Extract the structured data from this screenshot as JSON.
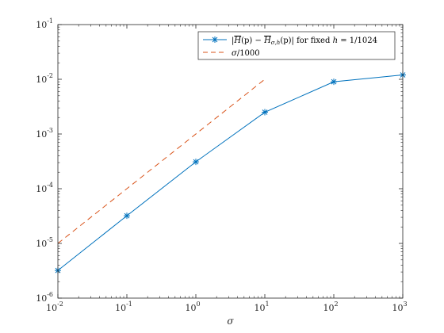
{
  "chart_data": {
    "type": "line",
    "xscale": "log",
    "yscale": "log",
    "xlim": [
      0.01,
      1000
    ],
    "ylim": [
      1e-06,
      0.1
    ],
    "xlabel": "σ",
    "ylabel": "",
    "title": "",
    "grid": false,
    "legend_position": "top-right",
    "x_ticks": [
      {
        "base": "10",
        "exp": "-2",
        "value": 0.01
      },
      {
        "base": "10",
        "exp": "-1",
        "value": 0.1
      },
      {
        "base": "10",
        "exp": "0",
        "value": 1
      },
      {
        "base": "10",
        "exp": "1",
        "value": 10
      },
      {
        "base": "10",
        "exp": "2",
        "value": 100
      },
      {
        "base": "10",
        "exp": "3",
        "value": 1000
      }
    ],
    "y_ticks": [
      {
        "base": "10",
        "exp": "-6",
        "value": 1e-06
      },
      {
        "base": "10",
        "exp": "-5",
        "value": 1e-05
      },
      {
        "base": "10",
        "exp": "-4",
        "value": 0.0001
      },
      {
        "base": "10",
        "exp": "-3",
        "value": 0.001
      },
      {
        "base": "10",
        "exp": "-2",
        "value": 0.01
      },
      {
        "base": "10",
        "exp": "-1",
        "value": 0.1
      }
    ],
    "series": [
      {
        "name": "|H(p) − H_{σ,h}(p)| for fixed h = 1/1024",
        "legend_label": {
          "lhs_a": "|",
          "h1": "H",
          "p1": "(p) − ",
          "h2": "H",
          "sub": "σ,h",
          "p2": "(p)| for fixed ",
          "hvar": "h",
          "rhs": " = 1/1024"
        },
        "color": "#0072BD",
        "line_style": "solid",
        "marker": "asterisk",
        "x": [
          0.01,
          0.1,
          1,
          10,
          100,
          1000
        ],
        "y": [
          3.2e-06,
          3.2e-05,
          0.00031,
          0.0025,
          0.009,
          0.012
        ]
      },
      {
        "name": "σ/1000",
        "legend_label": {
          "sigma": "σ",
          "rest": "/1000"
        },
        "color": "#D95319",
        "line_style": "dashed",
        "marker": "none",
        "x": [
          0.01,
          10
        ],
        "y": [
          1e-05,
          0.01
        ]
      }
    ]
  }
}
